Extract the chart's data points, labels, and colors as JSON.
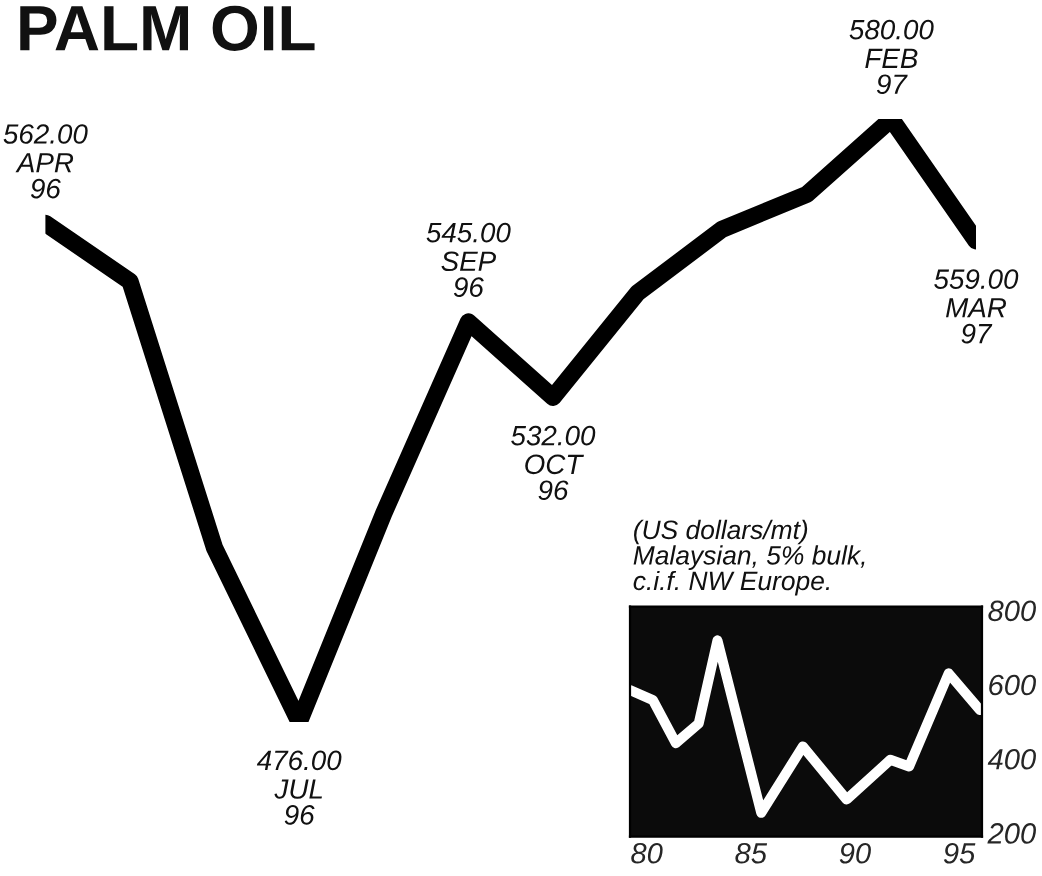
{
  "chart_data": [
    {
      "type": "line",
      "title": "PALM OIL",
      "categories": [
        "APR\n96",
        null,
        null,
        "JUL\n96",
        null,
        "SEP\n96",
        "OCT\n96",
        null,
        null,
        null,
        "FEB\n97",
        "MAR\n97"
      ],
      "tick_labels": false,
      "series": [
        {
          "color": "#000000",
          "values": [
            562,
            552,
            506,
            476,
            512,
            545,
            532,
            550,
            561,
            567,
            580,
            559
          ],
          "value_labels": [
            "562.00",
            null,
            null,
            "476.00",
            null,
            "545.00",
            "532.00",
            null,
            null,
            null,
            "580.00",
            "559.00"
          ]
        }
      ]
    },
    {
      "type": "line",
      "annotations": [
        "(US dollars/mt)\nMalaysian, 5% bulk,\nc.i.f. NW Europe."
      ],
      "x": [
        79.2,
        80.3,
        81.4,
        82.5,
        83.4,
        85.5,
        87.5,
        89.6,
        91.7,
        92.6,
        94.5,
        96.0
      ],
      "series": [
        {
          "color": "#ffffff",
          "values": [
            585,
            558,
            442,
            495,
            719,
            254,
            433,
            290,
            397,
            379,
            630,
            531
          ]
        }
      ],
      "xlim": [
        79.2,
        96.1
      ],
      "ylim": [
        190,
        810
      ],
      "xticks": [
        80,
        85,
        90,
        95
      ],
      "yticks": [
        200,
        400,
        600,
        800
      ]
    }
  ]
}
